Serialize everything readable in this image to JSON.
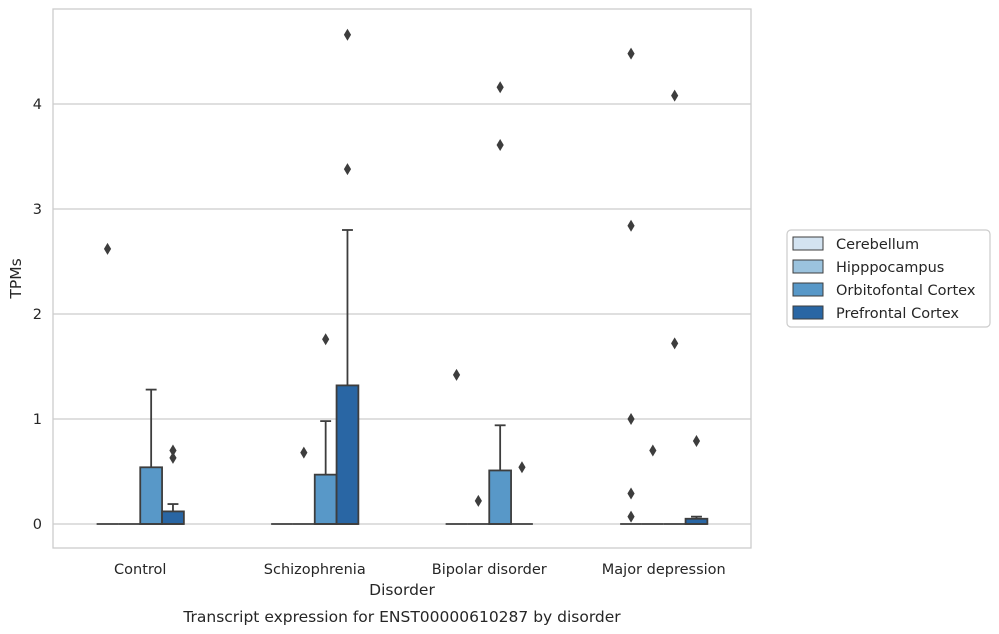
{
  "chart_data": {
    "type": "box",
    "title": "Transcript expression for ENST00000610287 by disorder",
    "xlabel": "Disorder",
    "ylabel": "TPMs",
    "ylim": [
      -0.22,
      4.9
    ],
    "yticks": [
      0,
      1,
      2,
      3,
      4
    ],
    "grid": "horizontal",
    "legend_position": "right",
    "categories": [
      "Control",
      "Schizophrenia",
      "Bipolar disorder",
      "Major depression"
    ],
    "series": [
      {
        "name": "Cerebellum",
        "color": "#d3e3f1",
        "boxes": [
          {
            "q1": 0,
            "median": 0,
            "q3": 0,
            "whislo": 0,
            "whishi": 0,
            "fliers": [
              2.62
            ]
          },
          {
            "q1": 0,
            "median": 0,
            "q3": 0,
            "whislo": 0,
            "whishi": 0,
            "fliers": []
          },
          {
            "q1": 0,
            "median": 0,
            "q3": 0,
            "whislo": 0,
            "whishi": 0,
            "fliers": [
              1.42
            ]
          },
          {
            "q1": 0,
            "median": 0,
            "q3": 0,
            "whislo": 0,
            "whishi": 0,
            "fliers": [
              4.48,
              2.84,
              1.0,
              0.29,
              0.07
            ]
          }
        ]
      },
      {
        "name": "Hipppocampus",
        "color": "#9bc3de",
        "boxes": [
          {
            "q1": 0,
            "median": 0,
            "q3": 0,
            "whislo": 0,
            "whishi": 0,
            "fliers": []
          },
          {
            "q1": 0,
            "median": 0,
            "q3": 0,
            "whislo": 0,
            "whishi": 0,
            "fliers": [
              0.68
            ]
          },
          {
            "q1": 0,
            "median": 0,
            "q3": 0,
            "whislo": 0,
            "whishi": 0,
            "fliers": [
              0.22
            ]
          },
          {
            "q1": 0,
            "median": 0,
            "q3": 0,
            "whislo": 0,
            "whishi": 0,
            "fliers": [
              0.7
            ]
          }
        ]
      },
      {
        "name": "Orbitofontal Cortex",
        "color": "#5898c8",
        "boxes": [
          {
            "q1": 0,
            "median": 0,
            "q3": 0.54,
            "whislo": 0,
            "whishi": 1.28,
            "fliers": []
          },
          {
            "q1": 0,
            "median": 0,
            "q3": 0.47,
            "whislo": 0,
            "whishi": 0.98,
            "fliers": [
              1.76
            ]
          },
          {
            "q1": 0,
            "median": 0,
            "q3": 0.51,
            "whislo": 0,
            "whishi": 0.94,
            "fliers": [
              4.16,
              3.61
            ]
          },
          {
            "q1": 0,
            "median": 0,
            "q3": 0,
            "whislo": 0,
            "whishi": 0,
            "fliers": [
              4.08,
              1.72
            ]
          }
        ]
      },
      {
        "name": "Prefrontal Cortex",
        "color": "#2966a4",
        "boxes": [
          {
            "q1": 0,
            "median": 0,
            "q3": 0.12,
            "whislo": 0,
            "whishi": 0.19,
            "fliers": [
              0.7,
              0.63
            ]
          },
          {
            "q1": 0,
            "median": 0,
            "q3": 1.32,
            "whislo": 0,
            "whishi": 2.8,
            "fliers": [
              4.66,
              3.38
            ]
          },
          {
            "q1": 0,
            "median": 0,
            "q3": 0,
            "whislo": 0,
            "whishi": 0,
            "fliers": [
              0.54
            ]
          },
          {
            "q1": 0,
            "median": 0,
            "q3": 0.05,
            "whislo": 0,
            "whishi": 0.07,
            "fliers": [
              0.79
            ]
          }
        ]
      }
    ]
  }
}
